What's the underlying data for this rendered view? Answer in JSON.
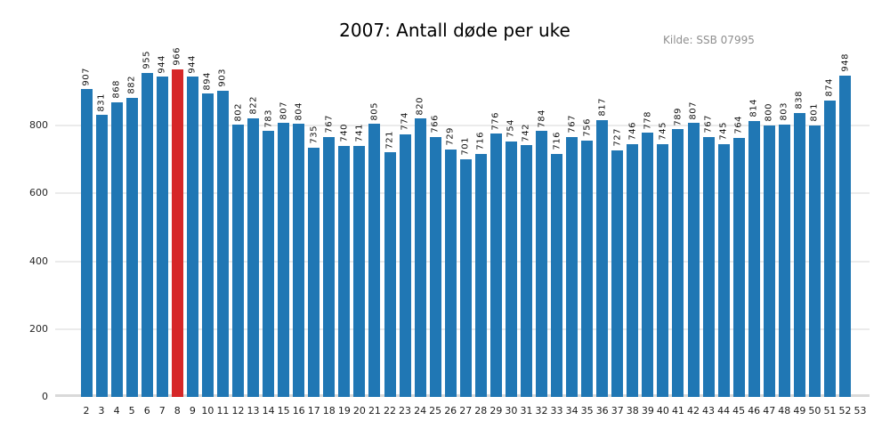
{
  "header": {
    "title": "2007: Antall døde per uke",
    "source": "Kilde: SSB 07995"
  },
  "chart_data": {
    "type": "bar",
    "title": "2007: Antall døde per uke",
    "source": "Kilde: SSB 07995",
    "xlabel": "",
    "ylabel": "",
    "categories": [
      "2",
      "3",
      "4",
      "5",
      "6",
      "7",
      "8",
      "9",
      "10",
      "11",
      "12",
      "13",
      "14",
      "15",
      "16",
      "17",
      "18",
      "19",
      "20",
      "21",
      "22",
      "23",
      "24",
      "25",
      "26",
      "27",
      "28",
      "29",
      "30",
      "31",
      "32",
      "33",
      "34",
      "35",
      "36",
      "37",
      "38",
      "39",
      "40",
      "41",
      "42",
      "43",
      "44",
      "45",
      "46",
      "47",
      "48",
      "49",
      "50",
      "51",
      "52",
      "53"
    ],
    "values": [
      907,
      831,
      868,
      882,
      955,
      944,
      966,
      944,
      894,
      903,
      802,
      822,
      783,
      807,
      804,
      735,
      767,
      740,
      741,
      805,
      721,
      774,
      820,
      766,
      729,
      701,
      716,
      776,
      754,
      742,
      784,
      716,
      767,
      756,
      817,
      727,
      746,
      778,
      745,
      789,
      807,
      767,
      745,
      764,
      814,
      800,
      803,
      838,
      801,
      874,
      948,
      null
    ],
    "highlight_category": "8",
    "highlight_value": 966,
    "bar_color": "#2077b4",
    "highlight_color": "#d62728",
    "yticks": [
      0,
      200,
      400,
      600,
      800
    ],
    "ylim": [
      0,
      1010
    ],
    "grid": "horizontal",
    "gridline_color": "#ebebeb",
    "baseline_color": "#d9d9d9",
    "value_labels": "rotated-90-above-bars",
    "legend": "none"
  }
}
